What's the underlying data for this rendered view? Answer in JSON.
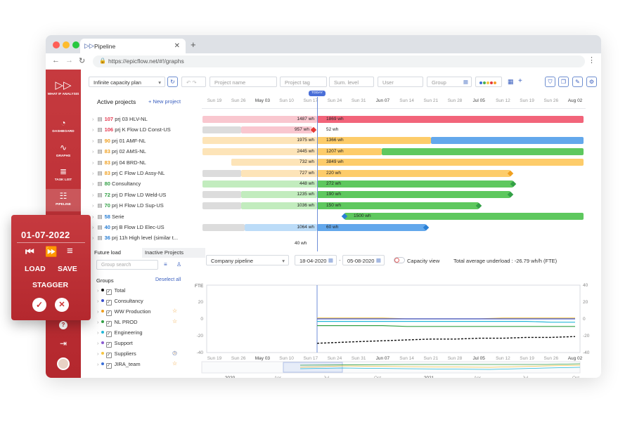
{
  "browser": {
    "tab_title": "Pipeline",
    "url": "https://epicflow.net/#!/graphs"
  },
  "sidebar": {
    "items": [
      {
        "label": "WHAT IF ANALYSIS",
        "icon": "fast-forward-icon"
      },
      {
        "label": "DASHBOARD",
        "icon": "gauge-icon"
      },
      {
        "label": "GRAPHS",
        "icon": "pulse-icon"
      },
      {
        "label": "TASK LIST",
        "icon": "list-icon"
      },
      {
        "label": "PIPELINE",
        "icon": "pipeline-icon"
      }
    ]
  },
  "toolbar": {
    "plan_select": "Infinite capacity plan",
    "project_name_placeholder": "Project name",
    "project_tag_placeholder": "Project tag",
    "sum_level_placeholder": "Sum. level",
    "user_placeholder": "User",
    "group_placeholder": "Group",
    "color_dots": [
      "#3a6fd8",
      "#4caf50",
      "#f5c542",
      "#e53935",
      "#f59d2a"
    ]
  },
  "timeline": {
    "active_projects_label": "Active projects",
    "new_project_label": "+ New project",
    "today_label": "TODAY",
    "dates": [
      "Sun 19",
      "Sun 26",
      "May 03",
      "Sun 10",
      "Sun 17",
      "Sun 24",
      "Sun 31",
      "Jun 07",
      "Sun 14",
      "Sun 21",
      "Sun 28",
      "Jul 05",
      "Sun 12",
      "Sun 19",
      "Sun 26",
      "Aug 02"
    ]
  },
  "projects": [
    {
      "num": "107",
      "name": "prj 03 HLV-NL",
      "num_color": "#e53950",
      "left": "1487 wh",
      "right": "1869 wh"
    },
    {
      "num": "106",
      "name": "prj K Flow LD Const-US",
      "num_color": "#e53950",
      "left": "957 wh",
      "right": "52 wh"
    },
    {
      "num": "90",
      "name": "prj 01 AMF-NL",
      "num_color": "#f0a020",
      "left": "1975 wh",
      "right": "1366 wh"
    },
    {
      "num": "83",
      "name": "prj 02 AMS-NL",
      "num_color": "#f0a020",
      "left": "2445 wh",
      "right": "1207 wh"
    },
    {
      "num": "83",
      "name": "prj 04 BRD-NL",
      "num_color": "#f0a020",
      "left": "732 wh",
      "right": "3849 wh"
    },
    {
      "num": "83",
      "name": "prj C Flow LD Assy-NL",
      "num_color": "#f0a020",
      "left": "727 wh",
      "right": "220 wh"
    },
    {
      "num": "80",
      "name": "Consultancy",
      "num_color": "#33a046",
      "left": "448 wh",
      "right": "272 wh"
    },
    {
      "num": "72",
      "name": "prj D Flow LD Weld-US",
      "num_color": "#33a046",
      "left": "1235 wh",
      "right": "190 wh"
    },
    {
      "num": "70",
      "name": "prj H Flow LD Sup-US",
      "num_color": "#33a046",
      "left": "1036 wh",
      "right": "150 wh"
    },
    {
      "num": "58",
      "name": "Serie",
      "num_color": "#2a7fd4",
      "left": "",
      "right": "1500 wh"
    },
    {
      "num": "40",
      "name": "prj B Flow LD Elec-US",
      "num_color": "#2a7fd4",
      "left": "1064 wh",
      "right": "60 wh"
    },
    {
      "num": "36",
      "name": "prj 11h High level (similar t...",
      "num_color": "#2a7fd4",
      "left": "",
      "right": "40 wh"
    }
  ],
  "bottom_panel": {
    "tab_future": "Future load",
    "tab_inactive": "Inactive Projects",
    "group_search_placeholder": "Group search",
    "groups_label": "Groups",
    "deselect_all": "Deselect all",
    "groups": [
      {
        "name": "Total",
        "color": "#111111",
        "star": false
      },
      {
        "name": "Consultancy",
        "color": "#3a4fd0",
        "star": false
      },
      {
        "name": "WW Production",
        "color": "#f0a020",
        "star": true
      },
      {
        "name": "NL PROD",
        "color": "#33a046",
        "star": true
      },
      {
        "name": "Engineering",
        "color": "#22b8d8",
        "star": false
      },
      {
        "name": "Support",
        "color": "#8a5ad0",
        "star": false
      },
      {
        "name": "Suppliers",
        "color": "#f5c542",
        "star": true
      },
      {
        "name": "JIRA_team",
        "color": "#3a6fd8",
        "star": true
      }
    ]
  },
  "chart_controls": {
    "pipeline_select": "Company pipeline",
    "date_from": "18-04-2020",
    "date_to": "05-08-2020",
    "capacity_view_label": "Capacity view",
    "underload_text": "Total average underload : -26.79 wh/h (FTE)",
    "y_unit": "FTE"
  },
  "chart_data": {
    "type": "line",
    "ylabel": "FTE",
    "ylim": [
      -40,
      40
    ],
    "yticks_left": [
      20,
      0,
      -20,
      -40
    ],
    "yticks_right": [
      40,
      20,
      0,
      -20,
      -40
    ],
    "x": [
      "Sun 19",
      "Sun 26",
      "May 03",
      "Sun 10",
      "Sun 17",
      "Sun 24",
      "Sun 31",
      "Jun 07",
      "Sun 14",
      "Sun 21",
      "Sun 28",
      "Jul 05",
      "Sun 12",
      "Sun 19",
      "Sun 26",
      "Aug 02"
    ],
    "series": [
      {
        "color": "#111111",
        "dashed": true,
        "values": [
          null,
          null,
          null,
          null,
          null,
          -29,
          -27,
          -26,
          -25,
          -24,
          -24,
          -23,
          -23,
          -22,
          -22,
          -21
        ]
      },
      {
        "color": "#33a046",
        "values": [
          null,
          null,
          null,
          null,
          null,
          -8,
          -8,
          -8,
          -9,
          -9,
          -9,
          -9,
          -9,
          -9,
          -9,
          -9
        ]
      },
      {
        "color": "#22b8d8",
        "values": [
          null,
          null,
          null,
          null,
          null,
          -3,
          -3,
          -3,
          -3,
          -3,
          -3,
          -3,
          -3,
          -3,
          -4,
          -4
        ]
      },
      {
        "color": "#f5c542",
        "values": [
          null,
          null,
          null,
          null,
          null,
          1,
          1,
          1,
          0,
          0,
          0,
          0,
          1,
          1,
          1,
          1
        ]
      },
      {
        "color": "#3a4fd0",
        "values": [
          null,
          null,
          null,
          null,
          null,
          0,
          0,
          0,
          0,
          0,
          0,
          0,
          0,
          0,
          0,
          0
        ]
      }
    ],
    "overview_labels": [
      "2020",
      "Apr",
      "Jul",
      "Oct",
      "2021",
      "Apr",
      "Jul",
      "Oct"
    ]
  },
  "popup": {
    "date": "01-07-2022",
    "load": "LOAD",
    "save": "SAVE",
    "stagger": "STAGGER"
  }
}
